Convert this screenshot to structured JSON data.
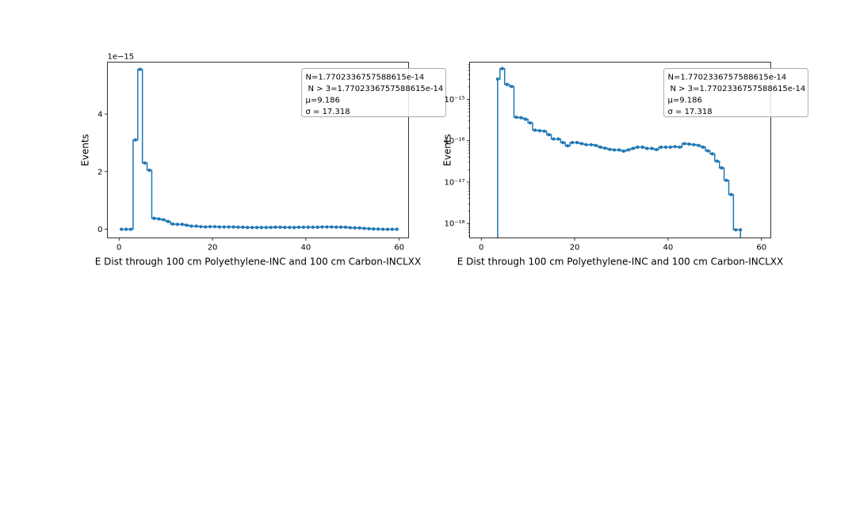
{
  "chart_data": [
    {
      "type": "line",
      "drawstyle": "steps-mid",
      "yscale": "linear",
      "xlabel": "E Dist through 100 cm Polyethylene-INC and 100 cm Carbon-INCLXX",
      "ylabel": "Events",
      "offset_label": "1e−15",
      "xlim": [
        -2.5,
        62
      ],
      "ylim": [
        -0.3,
        5.8
      ],
      "xticks": [
        0,
        20,
        40,
        60
      ],
      "xtick_labels": [
        "0",
        "20",
        "40",
        "60"
      ],
      "yticks": [
        0,
        2,
        4
      ],
      "ytick_labels": [
        "0",
        "2",
        "4"
      ],
      "legend": {
        "placement": "upper right",
        "lines": [
          "N=1.7702336757588615e-14",
          "N > 3=1.7702336757588615e-14",
          "μ=9.186",
          "σ = 17.318"
        ]
      },
      "x": [
        0.5,
        1.5,
        2.5,
        3.5,
        4.5,
        5.5,
        6.5,
        7.5,
        8.5,
        9.5,
        10.5,
        11.5,
        12.5,
        13.5,
        14.5,
        15.5,
        16.5,
        17.5,
        18.5,
        19.5,
        20.5,
        21.5,
        22.5,
        23.5,
        24.5,
        25.5,
        26.5,
        27.5,
        28.5,
        29.5,
        30.5,
        31.5,
        32.5,
        33.5,
        34.5,
        35.5,
        36.5,
        37.5,
        38.5,
        39.5,
        40.5,
        41.5,
        42.5,
        43.5,
        44.5,
        45.5,
        46.5,
        47.5,
        48.5,
        49.5,
        50.5,
        51.5,
        52.5,
        53.5,
        54.5,
        55.5,
        56.5,
        57.5,
        58.5,
        59.5
      ],
      "y_unit": "1e-15",
      "y": [
        0,
        0,
        0,
        3.1,
        5.55,
        2.3,
        2.05,
        0.38,
        0.36,
        0.33,
        0.27,
        0.18,
        0.17,
        0.17,
        0.14,
        0.11,
        0.11,
        0.09,
        0.08,
        0.09,
        0.09,
        0.08,
        0.08,
        0.08,
        0.08,
        0.07,
        0.07,
        0.06,
        0.06,
        0.06,
        0.06,
        0.06,
        0.065,
        0.07,
        0.07,
        0.065,
        0.065,
        0.06,
        0.07,
        0.07,
        0.07,
        0.07,
        0.07,
        0.08,
        0.08,
        0.08,
        0.075,
        0.075,
        0.07,
        0.055,
        0.05,
        0.045,
        0.03,
        0.02,
        0.01,
        0.005,
        0,
        0,
        0,
        0
      ]
    },
    {
      "type": "line",
      "drawstyle": "steps-mid",
      "yscale": "log",
      "xlabel": "E Dist through 100 cm Polyethylene-INC and 100 cm Carbon-INCLXX",
      "ylabel": "Events",
      "xlim": [
        -2.5,
        62
      ],
      "ylim_log10": [
        -18.35,
        -14.1
      ],
      "xticks": [
        0,
        20,
        40,
        60
      ],
      "xtick_labels": [
        "0",
        "20",
        "40",
        "60"
      ],
      "yticks_log10": [
        -18,
        -17,
        -16,
        -15
      ],
      "ytick_labels": [
        "10⁻¹⁸",
        "10⁻¹⁷",
        "10⁻¹⁶",
        "10⁻¹⁵"
      ],
      "legend": {
        "placement": "upper right",
        "lines": [
          "N=1.7702336757588615e-14",
          "N > 3=1.7702336757588615e-14",
          "μ=9.186",
          "σ = 17.318"
        ]
      },
      "x": [
        3.5,
        4.5,
        5.5,
        6.5,
        7.5,
        8.5,
        9.5,
        10.5,
        11.5,
        12.5,
        13.5,
        14.5,
        15.5,
        16.5,
        17.5,
        18.5,
        19.5,
        20.5,
        21.5,
        22.5,
        23.5,
        24.5,
        25.5,
        26.5,
        27.5,
        28.5,
        29.5,
        30.5,
        31.5,
        32.5,
        33.5,
        34.5,
        35.5,
        36.5,
        37.5,
        38.5,
        39.5,
        40.5,
        41.5,
        42.5,
        43.5,
        44.5,
        45.5,
        46.5,
        47.5,
        48.5,
        49.5,
        50.5,
        51.5,
        52.5,
        53.5,
        54.5,
        55.5
      ],
      "y": [
        3.1e-15,
        5.55e-15,
        2.3e-15,
        2.05e-15,
        3.7e-16,
        3.6e-16,
        3.3e-16,
        2.7e-16,
        1.8e-16,
        1.75e-16,
        1.7e-16,
        1.4e-16,
        1.1e-16,
        1.1e-16,
        9e-17,
        7.5e-17,
        9e-17,
        9e-17,
        8.5e-17,
        8e-17,
        8e-17,
        7.7e-17,
        7e-17,
        6.6e-17,
        6.2e-17,
        6e-17,
        6e-17,
        5.6e-17,
        6e-17,
        6.5e-17,
        7e-17,
        7e-17,
        6.5e-17,
        6.5e-17,
        6.1e-17,
        7e-17,
        7e-17,
        7e-17,
        7.2e-17,
        7e-17,
        8.5e-17,
        8.3e-17,
        8e-17,
        7.7e-17,
        7e-17,
        5.7e-17,
        4.8e-17,
        3.2e-17,
        2.2e-17,
        1.1e-17,
        5e-18,
        7e-19,
        7e-19
      ]
    }
  ]
}
